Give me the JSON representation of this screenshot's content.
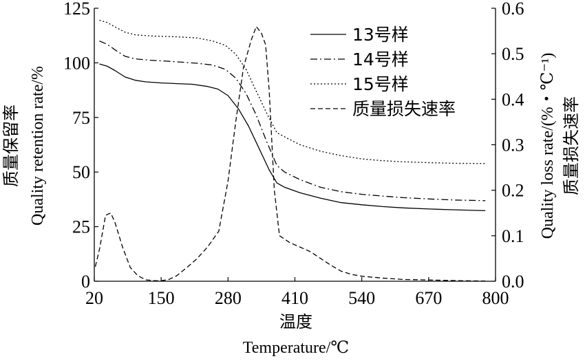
{
  "chart_data": {
    "type": "line",
    "x_axis": {
      "title_cn": "温度",
      "title_en": "Temperature/℃",
      "range": [
        20,
        800
      ],
      "ticks": [
        20,
        150,
        280,
        410,
        540,
        670,
        800
      ],
      "tick_labels": [
        "20",
        "150",
        "280",
        "410",
        "540",
        "670",
        "800"
      ]
    },
    "y_axis_left": {
      "title_cn": "质量保留率",
      "title_en": "Quality retention rate/%",
      "range": [
        0,
        125
      ],
      "ticks": [
        0,
        25,
        50,
        75,
        100,
        125
      ],
      "tick_labels": [
        "0",
        "25",
        "50",
        "75",
        "100",
        "125"
      ]
    },
    "y_axis_right": {
      "title_cn": "质量损失速率",
      "title_en": "Quality loss rate/(%・℃⁻¹)",
      "range": [
        0,
        0.6
      ],
      "ticks": [
        0,
        0.1,
        0.2,
        0.3,
        0.4,
        0.5,
        0.6
      ],
      "tick_labels": [
        "0.0",
        "0.1",
        "0.2",
        "0.3",
        "0.4",
        "0.5",
        "0.6"
      ]
    },
    "legend_position": "top-right",
    "grid": false,
    "series": [
      {
        "name": "13号样",
        "axis": "left",
        "style": "solid",
        "x": [
          30,
          45,
          60,
          80,
          100,
          120,
          150,
          180,
          210,
          240,
          260,
          280,
          300,
          320,
          340,
          360,
          375,
          390,
          420,
          460,
          500,
          540,
          580,
          620,
          670,
          720,
          780
        ],
        "y": [
          99.5,
          98.5,
          96.5,
          93.5,
          92,
          91.3,
          90.8,
          90.5,
          90.2,
          89.2,
          88,
          85,
          79,
          71,
          61,
          51,
          45,
          43,
          40.5,
          38,
          36,
          35,
          34.2,
          33.6,
          33.1,
          32.7,
          32.3
        ]
      },
      {
        "name": "14号样",
        "axis": "left",
        "style": "dashdot",
        "x": [
          30,
          45,
          60,
          80,
          100,
          130,
          160,
          190,
          220,
          250,
          275,
          295,
          315,
          335,
          355,
          375,
          390,
          420,
          460,
          500,
          540,
          580,
          620,
          670,
          720,
          780
        ],
        "y": [
          110,
          108.5,
          106,
          103,
          101.8,
          101.2,
          100.8,
          100.3,
          99.8,
          99,
          97,
          93,
          86,
          76,
          64,
          53,
          50,
          46.5,
          43,
          41,
          39.8,
          39,
          38.3,
          37.7,
          37.2,
          36.9
        ]
      },
      {
        "name": "15号样",
        "axis": "left",
        "style": "dotted",
        "x": [
          30,
          45,
          60,
          80,
          100,
          130,
          160,
          190,
          220,
          250,
          275,
          295,
          315,
          335,
          355,
          375,
          395,
          420,
          460,
          500,
          540,
          580,
          620,
          670,
          720,
          780
        ],
        "y": [
          119.5,
          118.5,
          116.5,
          114,
          112.8,
          112.3,
          112.1,
          111.8,
          111.4,
          110,
          108,
          104,
          97,
          87,
          77,
          68,
          65.5,
          62.5,
          59.5,
          57.5,
          56,
          55.2,
          54.7,
          54.3,
          54,
          53.9
        ]
      },
      {
        "name": "质量损失速率",
        "axis": "right",
        "style": "dashed",
        "x": [
          22,
          30,
          42,
          52,
          60,
          75,
          90,
          105,
          120,
          140,
          150,
          165,
          180,
          200,
          220,
          240,
          262,
          280,
          295,
          310,
          325,
          335,
          345,
          353,
          360,
          370,
          380,
          400,
          420,
          440,
          460,
          480,
          500,
          520,
          540,
          580,
          620,
          660,
          700,
          740,
          780
        ],
        "y": [
          0.032,
          0.07,
          0.145,
          0.15,
          0.13,
          0.075,
          0.03,
          0.012,
          0.003,
          0.001,
          0.001,
          0.004,
          0.012,
          0.03,
          0.05,
          0.075,
          0.11,
          0.22,
          0.35,
          0.47,
          0.53,
          0.56,
          0.545,
          0.52,
          0.42,
          0.2,
          0.1,
          0.085,
          0.075,
          0.065,
          0.05,
          0.035,
          0.022,
          0.015,
          0.011,
          0.007,
          0.004,
          0.003,
          0.002,
          0.001,
          0.0005
        ]
      }
    ]
  }
}
